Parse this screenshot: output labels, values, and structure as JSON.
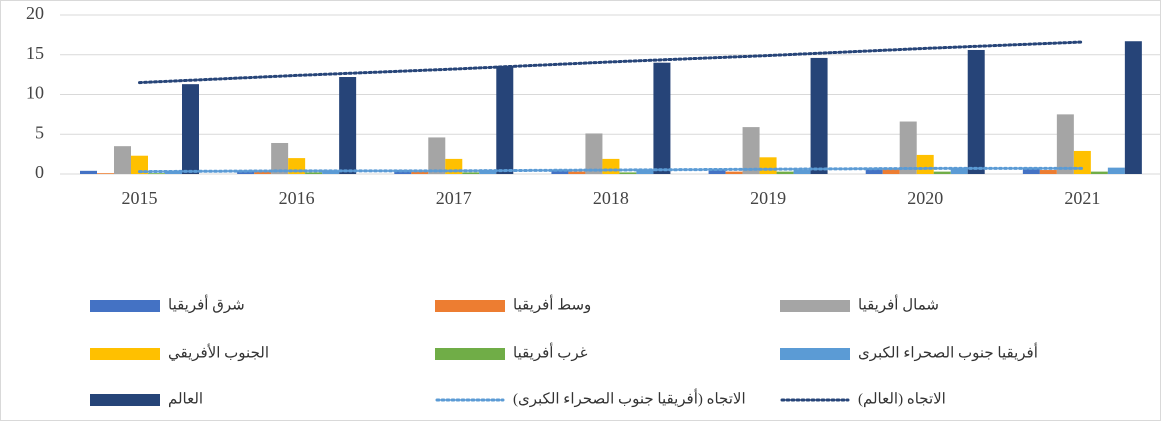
{
  "chart_data": {
    "type": "bar",
    "categories": [
      "2015",
      "2016",
      "2017",
      "2018",
      "2019",
      "2020",
      "2021"
    ],
    "series": [
      {
        "name": "شرق أفريقيا",
        "color": "#4472c4",
        "values": [
          0.4,
          0.4,
          0.5,
          0.5,
          0.6,
          0.7,
          0.8
        ]
      },
      {
        "name": "وسط أفريقيا",
        "color": "#ed7d31",
        "values": [
          0.1,
          0.3,
          0.3,
          0.3,
          0.3,
          0.6,
          0.5
        ]
      },
      {
        "name": "شمال أفريقيا",
        "color": "#a5a5a5",
        "values": [
          3.5,
          3.9,
          4.6,
          5.1,
          5.9,
          6.6,
          7.5
        ]
      },
      {
        "name": "الجنوب الأفريقي",
        "color": "#ffc000",
        "values": [
          2.3,
          2.0,
          1.9,
          1.9,
          2.1,
          2.4,
          2.9
        ]
      },
      {
        "name": "غرب أفريقيا",
        "color": "#70ad47",
        "values": [
          0.1,
          0.2,
          0.2,
          0.2,
          0.3,
          0.3,
          0.3
        ]
      },
      {
        "name": "أفريقيا جنوب الصحراء الكبرى",
        "color": "#5b9bd5",
        "values": [
          0.4,
          0.4,
          0.5,
          0.5,
          0.5,
          0.7,
          0.8
        ]
      },
      {
        "name": "العالم",
        "color": "#264478",
        "values": [
          11.3,
          12.2,
          13.6,
          14.0,
          14.6,
          15.6,
          16.7
        ]
      }
    ],
    "trendlines": [
      {
        "name": "الاتجاه (أفريقيا جنوب الصحراء الكبرى)",
        "color": "#5b9bd5",
        "values": [
          0.3,
          0.4,
          0.4,
          0.5,
          0.6,
          0.7,
          0.7
        ]
      },
      {
        "name": "الاتجاه (العالم)",
        "color": "#264478",
        "values": [
          11.5,
          12.4,
          13.2,
          14.1,
          14.9,
          15.8,
          16.6
        ]
      }
    ],
    "ylim": [
      0,
      20
    ],
    "yticks": [
      0,
      5,
      10,
      15,
      20
    ],
    "grid": true
  }
}
